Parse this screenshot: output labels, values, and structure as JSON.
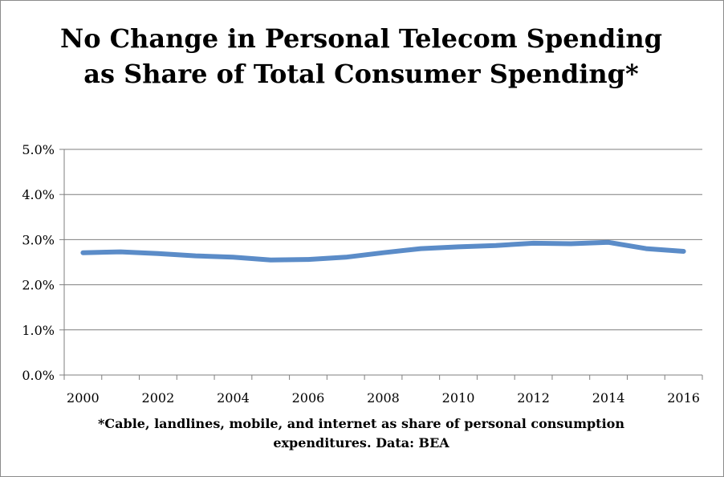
{
  "chart_data": {
    "type": "line",
    "title": "No Change in Personal Telecom Spending as Share of Total Consumer Spending*",
    "footnote": "*Cable, landlines, mobile, and internet as share of personal consumption expenditures. Data: BEA",
    "xlabel": "",
    "ylabel": "",
    "x": [
      2000,
      2001,
      2002,
      2003,
      2004,
      2005,
      2006,
      2007,
      2008,
      2009,
      2010,
      2011,
      2012,
      2013,
      2014,
      2015,
      2016
    ],
    "x_tick_labels": [
      "2000",
      "2002",
      "2004",
      "2006",
      "2008",
      "2010",
      "2012",
      "2014",
      "2016"
    ],
    "y_tick_labels": [
      "0.0%",
      "1.0%",
      "2.0%",
      "3.0%",
      "4.0%",
      "5.0%"
    ],
    "ylim": [
      0,
      5
    ],
    "y_unit": "%",
    "grid": true,
    "legend": "none",
    "series": [
      {
        "values": [
          2.71,
          2.73,
          2.69,
          2.64,
          2.61,
          2.55,
          2.56,
          2.61,
          2.71,
          2.8,
          2.84,
          2.87,
          2.92,
          2.91,
          2.94,
          2.8,
          2.74
        ],
        "color": "#5b8cc8"
      }
    ],
    "gridline_color": "#7f7f7f",
    "axis_color": "#7f7f7f"
  }
}
